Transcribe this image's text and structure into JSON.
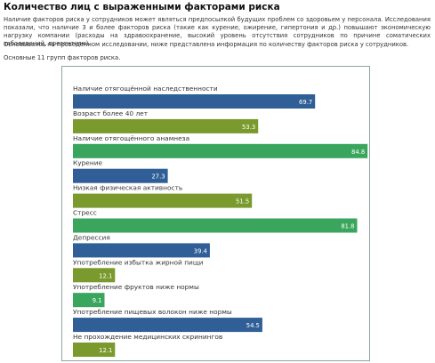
{
  "page": {
    "title": "Количество лиц с выраженными факторами риска",
    "paragraph1": "Наличие факторов риска у сотрудников может являться предпосылкой будущих проблем со здоровьем у персонала. Исследования показали, что наличие 3 и более факторов риска (такие как курение, ожирение, гипертония и др.) повышают экономическую нагрузку компании (расходы на здравоохранение, высокий уровень отсутствия сотрудников по причине соматических заболеваний, презентизм).",
    "paragraph2": "Основываясь на проведенном исследовании, ниже представлена информация по количеству факторов риска у сотрудников.",
    "paragraph3": "Основные 11 групп факторов риска."
  },
  "chart_data": {
    "type": "bar",
    "orientation": "horizontal",
    "categories": [
      "Наличие отягощённой наследственности",
      "Возраст более 40 лет",
      "Наличие отягощённого анамнеза",
      "Курение",
      "Низкая физическая активность",
      "Стресс",
      "Депрессия",
      "Употребление избытка жирной пищи",
      "Употребление фруктов ниже нормы",
      "Употребление пищевых волокон ниже нормы",
      "Не прохождение медицинских скринингов"
    ],
    "values": [
      69.7,
      53.3,
      84.8,
      27.3,
      51.5,
      81.8,
      39.4,
      12.1,
      9.1,
      54.5,
      12.1
    ],
    "value_labels": [
      "69.7",
      "53.3",
      "84.8",
      "27.3",
      "51.5",
      "81.8",
      "39.4",
      "12.1",
      "9.1",
      "54.5",
      "12.1"
    ],
    "colors": [
      "#2f5f96",
      "#7a9a2e",
      "#3aa55c",
      "#2f5f96",
      "#7a9a2e",
      "#3aa55c",
      "#2f5f96",
      "#7a9a2e",
      "#3aa55c",
      "#2f5f96",
      "#7a9a2e"
    ],
    "xlim": [
      0,
      85
    ],
    "grid": false,
    "legend": "none"
  }
}
